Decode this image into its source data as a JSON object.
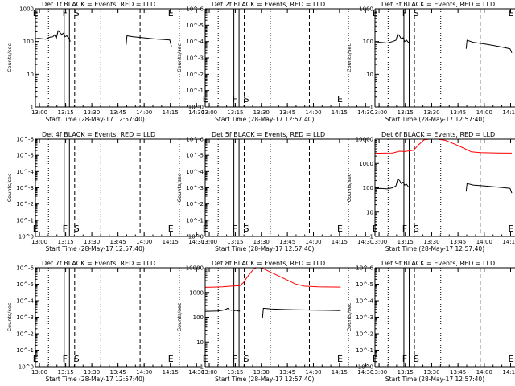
{
  "chart_data": {
    "type": "line",
    "grid": false,
    "x_ticks": [
      "13:00",
      "13:15",
      "13:30",
      "13:45",
      "14:00",
      "14:15",
      "14:30"
    ],
    "x_range_minutes": [
      0,
      95
    ],
    "xlabel": "Start Time (28-May-17 12:57:40)",
    "ylabel": "Counts/sec",
    "y_ticks_log_numeric": [
      "1",
      "10",
      "100",
      "1000",
      "10000"
    ],
    "y_ticks_log_exponent": [
      "10^0",
      "10^-1",
      "10^-2",
      "10^-3",
      "10^-4",
      "10^-5",
      "10^-6"
    ],
    "marker_labels": [
      "E",
      "F",
      "S",
      "E"
    ],
    "vertical_lines": [
      {
        "t": 7.5,
        "style": "dotted"
      },
      {
        "t": 16.5,
        "style": "solid"
      },
      {
        "t": 19.5,
        "style": "solid"
      },
      {
        "t": 22.5,
        "style": "dashed"
      },
      {
        "t": 37.5,
        "style": "dotted"
      },
      {
        "t": 60.0,
        "style": "dashed"
      },
      {
        "t": 82.5,
        "style": "dotted"
      }
    ],
    "panels": [
      {
        "title": "Det 1f BLACK = Events, RED = LLD",
        "yscale": "numeric",
        "ylim": [
          1,
          1000
        ],
        "series": [
          {
            "color": "#000000",
            "segments": [
              [
                [
                  -1.5,
                  70
                ],
                [
                  -1,
                  120
                ],
                [
                  2,
                  125
                ],
                [
                  6,
                  118
                ],
                [
                  8,
                  135
                ],
                [
                  10,
                  140
                ],
                [
                  11,
                  160
                ],
                [
                  12,
                  125
                ],
                [
                  13,
                  215
                ],
                [
                  14,
                  190
                ],
                [
                  15,
                  165
                ],
                [
                  16,
                  180
                ],
                [
                  17,
                  140
                ],
                [
                  18,
                  150
                ],
                [
                  19,
                  130
                ],
                [
                  20,
                  100
                ]
              ],
              [
                [
                  52,
                  80
                ],
                [
                  52.5,
                  150
                ],
                [
                  56,
                  140
                ],
                [
                  62,
                  130
                ],
                [
                  68,
                  120
                ],
                [
                  74,
                  115
                ],
                [
                  77,
                  112
                ],
                [
                  78,
                  70
                ]
              ]
            ]
          }
        ]
      },
      {
        "title": "Det 2f BLACK = Events, RED = LLD",
        "yscale": "exponent",
        "ylim": [
          0,
          6
        ],
        "series": []
      },
      {
        "title": "Det 3f BLACK = Events, RED = LLD",
        "yscale": "numeric",
        "ylim": [
          1,
          1000
        ],
        "series": [
          {
            "color": "#000000",
            "segments": [
              [
                [
                  -1.5,
                  60
                ],
                [
                  -1,
                  90
                ],
                [
                  3,
                  95
                ],
                [
                  7,
                  90
                ],
                [
                  10,
                  100
                ],
                [
                  12,
                  110
                ],
                [
                  13,
                  170
                ],
                [
                  14,
                  150
                ],
                [
                  15,
                  120
                ],
                [
                  16,
                  130
                ],
                [
                  17,
                  100
                ],
                [
                  18,
                  110
                ],
                [
                  19,
                  95
                ],
                [
                  20,
                  80
                ]
              ],
              [
                [
                  52,
                  60
                ],
                [
                  52.5,
                  110
                ],
                [
                  56,
                  95
                ],
                [
                  62,
                  85
                ],
                [
                  68,
                  75
                ],
                [
                  74,
                  65
                ],
                [
                  77,
                  60
                ],
                [
                  78,
                  45
                ]
              ]
            ]
          }
        ]
      },
      {
        "title": "Det 4f BLACK = Events, RED = LLD",
        "yscale": "exponent",
        "ylim": [
          0,
          6
        ],
        "series": []
      },
      {
        "title": "Det 5f BLACK = Events, RED = LLD",
        "yscale": "exponent",
        "ylim": [
          0,
          6
        ],
        "series": []
      },
      {
        "title": "Det 6f BLACK = Events, RED = LLD",
        "yscale": "numeric",
        "ylim": [
          1,
          10000
        ],
        "series": [
          {
            "color": "#000000",
            "segments": [
              [
                [
                  -1.5,
                  40
                ],
                [
                  -1,
                  90
                ],
                [
                  3,
                  95
                ],
                [
                  7,
                  90
                ],
                [
                  10,
                  100
                ],
                [
                  12,
                  120
                ],
                [
                  13,
                  230
                ],
                [
                  14,
                  200
                ],
                [
                  15,
                  150
                ],
                [
                  16,
                  170
                ],
                [
                  17,
                  130
                ],
                [
                  18,
                  140
                ],
                [
                  19,
                  110
                ],
                [
                  20,
                  95
                ]
              ],
              [
                [
                  52,
                  70
                ],
                [
                  52.5,
                  150
                ],
                [
                  56,
                  130
                ],
                [
                  62,
                  120
                ],
                [
                  68,
                  110
                ],
                [
                  74,
                  100
                ],
                [
                  77,
                  95
                ],
                [
                  78,
                  60
                ]
              ]
            ]
          },
          {
            "color": "#ff0000",
            "segments": [
              [
                [
                  -1.5,
                  2600
                ],
                [
                  5,
                  2650
                ],
                [
                  10,
                  2700
                ],
                [
                  14,
                  3200
                ],
                [
                  17,
                  3100
                ],
                [
                  22,
                  3500
                ],
                [
                  25,
                  6000
                ],
                [
                  28,
                  9500
                ],
                [
                  34,
                  10500
                ],
                [
                  40,
                  9000
                ],
                [
                  45,
                  6500
                ],
                [
                  50,
                  4500
                ],
                [
                  55,
                  3000
                ],
                [
                  60,
                  2800
                ],
                [
                  70,
                  2700
                ],
                [
                  78,
                  2650
                ]
              ]
            ]
          }
        ]
      },
      {
        "title": "Det 7f BLACK = Events, RED = LLD",
        "yscale": "exponent",
        "ylim": [
          0,
          6
        ],
        "series": []
      },
      {
        "title": "Det 8f BLACK = Events, RED = LLD",
        "yscale": "numeric",
        "ylim": [
          1,
          10000
        ],
        "series": [
          {
            "color": "#000000",
            "segments": [
              [
                [
                  -1.5,
                  70
                ],
                [
                  -1,
                  170
                ],
                [
                  3,
                  175
                ],
                [
                  7,
                  180
                ],
                [
                  10,
                  190
                ],
                [
                  12,
                  210
                ],
                [
                  13,
                  230
                ],
                [
                  14,
                  200
                ],
                [
                  15,
                  190
                ],
                [
                  16,
                  200
                ],
                [
                  17,
                  185
                ],
                [
                  18,
                  190
                ],
                [
                  19,
                  180
                ],
                [
                  20,
                  180
                ]
              ],
              [
                [
                  33,
                  90
                ],
                [
                  33.5,
                  230
                ],
                [
                  38,
                  215
                ],
                [
                  45,
                  205
                ],
                [
                  52,
                  200
                ],
                [
                  60,
                  195
                ],
                [
                  70,
                  190
                ],
                [
                  78,
                  185
                ]
              ]
            ]
          },
          {
            "color": "#ff0000",
            "segments": [
              [
                [
                  -1.5,
                  1600
                ],
                [
                  5,
                  1650
                ],
                [
                  10,
                  1700
                ],
                [
                  15,
                  1800
                ],
                [
                  20,
                  1900
                ],
                [
                  22,
                  2500
                ],
                [
                  25,
                  5000
                ],
                [
                  28,
                  9000
                ],
                [
                  30,
                  10500
                ],
                [
                  33,
                  9500
                ],
                [
                  38,
                  6500
                ],
                [
                  45,
                  3800
                ],
                [
                  52,
                  2200
                ],
                [
                  57,
                  1800
                ],
                [
                  65,
                  1700
                ],
                [
                  78,
                  1650
                ]
              ]
            ]
          }
        ]
      },
      {
        "title": "Det 9f BLACK = Events, RED = LLD",
        "yscale": "exponent",
        "ylim": [
          0,
          6
        ],
        "series": []
      }
    ]
  }
}
